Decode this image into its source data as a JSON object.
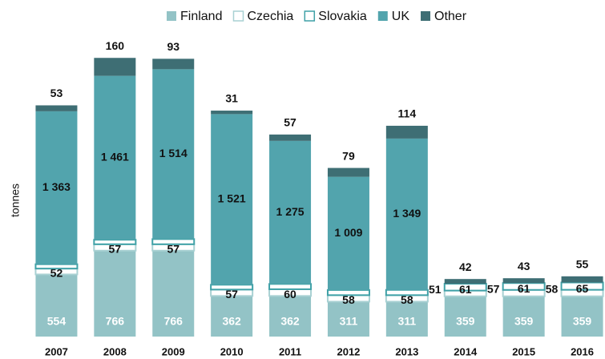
{
  "chart_data": {
    "type": "stacked_bar",
    "y_label": "tonnes",
    "categories": [
      "2007",
      "2008",
      "2009",
      "2010",
      "2011",
      "2012",
      "2013",
      "2014",
      "2015",
      "2016"
    ],
    "series": [
      {
        "name": "Finland",
        "color": "#93c3c6",
        "values": [
          554,
          766,
          766,
          362,
          362,
          311,
          311,
          359,
          359,
          359
        ]
      },
      {
        "name": "Czechia",
        "color": "#ffffff",
        "border": "#a9d1d3",
        "values": [
          52,
          57,
          57,
          57,
          60,
          58,
          58,
          51,
          57,
          58
        ]
      },
      {
        "name": "Slovakia",
        "color": "#ffffff",
        "border": "#3fa1a7",
        "values": [
          39,
          40,
          46,
          43,
          47,
          46,
          47,
          61,
          61,
          65
        ]
      },
      {
        "name": "UK",
        "color": "#52a4ad",
        "values": [
          1363,
          1461,
          1514,
          1521,
          1275,
          1009,
          1349,
          null,
          null,
          null
        ],
        "value_labels": [
          "1 363",
          "1 461",
          "1 514",
          "1 521",
          "1 275",
          "1 009",
          "1 349",
          null,
          null,
          null
        ]
      },
      {
        "name": "Other",
        "color": "#3e6e74",
        "values": [
          53,
          160,
          93,
          31,
          57,
          79,
          114,
          42,
          43,
          55
        ]
      }
    ],
    "ylim": [
      0,
      2500
    ]
  }
}
